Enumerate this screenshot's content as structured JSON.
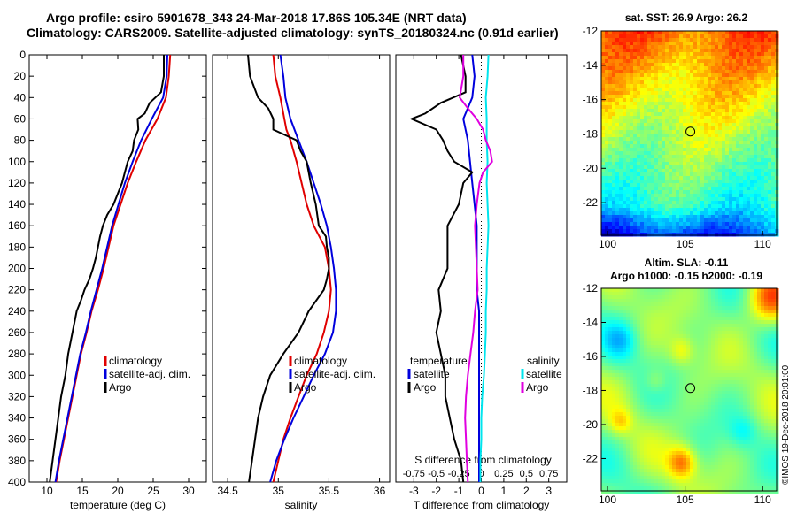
{
  "header": {
    "line1": "Argo profile: csiro 5901678_343 24-Mar-2018 17.86S 105.34E (NRT data)",
    "line2": "Climatology: CARS2009. Satellite-adjusted climatology: synTS_20180324.nc (0.91d earlier)"
  },
  "stamp": "©IMOS 19-Dec-2018 20:01:00",
  "colors": {
    "climatology": "#e00000",
    "satellite": "#0000dd",
    "argo": "#000000",
    "sal_satellite": "#00e5ee",
    "sal_argo": "#e000e0"
  },
  "chart_data": [
    {
      "id": "temperature",
      "type": "line",
      "xlabel": "temperature (deg C)",
      "ylabel": "",
      "xlim": [
        7.5,
        32.5
      ],
      "ylim": [
        400,
        0
      ],
      "xticks": [
        10,
        15,
        20,
        25,
        30
      ],
      "yticks": [
        0,
        20,
        40,
        60,
        80,
        100,
        120,
        140,
        160,
        180,
        200,
        220,
        240,
        260,
        280,
        300,
        320,
        340,
        360,
        380,
        400
      ],
      "legend": [
        "climatology",
        "satellite-adj. clim.",
        "Argo"
      ],
      "series": [
        {
          "name": "climatology",
          "color": "#e00000",
          "depth": [
            0,
            20,
            40,
            60,
            80,
            100,
            120,
            140,
            160,
            180,
            200,
            220,
            240,
            260,
            280,
            300,
            320,
            340,
            360,
            380,
            400
          ],
          "values": [
            27.4,
            27.2,
            26.8,
            25.6,
            23.9,
            22.6,
            21.4,
            20.4,
            19.4,
            18.7,
            18.0,
            17.2,
            16.3,
            15.6,
            14.8,
            14.2,
            13.6,
            13.0,
            12.4,
            11.8,
            11.3
          ]
        },
        {
          "name": "satellite-adj. clim.",
          "color": "#0000dd",
          "depth": [
            0,
            20,
            40,
            60,
            80,
            100,
            120,
            140,
            160,
            180,
            200,
            220,
            240,
            260,
            280,
            300,
            320,
            340,
            360,
            380,
            400
          ],
          "values": [
            27.0,
            26.9,
            26.4,
            24.8,
            23.3,
            22.1,
            21.0,
            20.1,
            19.2,
            18.5,
            17.8,
            17.0,
            16.2,
            15.5,
            14.7,
            14.1,
            13.5,
            12.9,
            12.3,
            11.7,
            11.2
          ]
        },
        {
          "name": "Argo",
          "color": "#000000",
          "depth": [
            0,
            20,
            35,
            45,
            55,
            60,
            70,
            80,
            90,
            100,
            110,
            120,
            130,
            140,
            150,
            160,
            170,
            180,
            190,
            200,
            210,
            220,
            230,
            240,
            250,
            260,
            270,
            280,
            290,
            300,
            310,
            320,
            330,
            340,
            350,
            360,
            370,
            380,
            390,
            400
          ],
          "values": [
            26.5,
            26.5,
            26.1,
            24.5,
            23.8,
            22.8,
            22.9,
            22.3,
            22.1,
            21.4,
            21.0,
            20.6,
            20.0,
            19.4,
            18.5,
            17.9,
            17.5,
            17.2,
            16.9,
            16.5,
            16.0,
            15.3,
            14.8,
            14.2,
            13.9,
            13.6,
            13.3,
            13.0,
            12.8,
            12.6,
            12.3,
            12.0,
            11.8,
            11.6,
            11.4,
            11.2,
            11.0,
            10.8,
            10.6,
            10.4
          ]
        }
      ]
    },
    {
      "id": "salinity",
      "type": "line",
      "xlabel": "salinity",
      "ylabel": "",
      "xlim": [
        34.35,
        36.1
      ],
      "ylim": [
        400,
        0
      ],
      "xticks": [
        34.5,
        35,
        35.5,
        36
      ],
      "xtick_labels": [
        "34.5",
        "35",
        "35.5",
        "36"
      ],
      "legend": [
        "climatology",
        "satellite-adj. clim.",
        "Argo"
      ],
      "series": [
        {
          "name": "climatology",
          "color": "#e00000",
          "depth": [
            0,
            20,
            40,
            60,
            70,
            80,
            100,
            120,
            140,
            160,
            180,
            200,
            220,
            240,
            260,
            280,
            300,
            320,
            340,
            360,
            380,
            400
          ],
          "values": [
            34.95,
            34.97,
            35.02,
            35.06,
            35.08,
            35.12,
            35.18,
            35.23,
            35.28,
            35.35,
            35.46,
            35.5,
            35.52,
            35.5,
            35.45,
            35.38,
            35.28,
            35.2,
            35.12,
            35.05,
            35.0,
            34.95
          ]
        },
        {
          "name": "satellite-adj. clim.",
          "color": "#0000dd",
          "depth": [
            0,
            20,
            40,
            60,
            80,
            100,
            120,
            140,
            160,
            180,
            200,
            220,
            240,
            260,
            280,
            300,
            320,
            340,
            360,
            380,
            400
          ],
          "values": [
            35.02,
            35.05,
            35.07,
            35.12,
            35.2,
            35.28,
            35.35,
            35.42,
            35.48,
            35.52,
            35.55,
            35.57,
            35.57,
            35.54,
            35.46,
            35.35,
            35.25,
            35.15,
            35.06,
            34.98,
            34.92
          ]
        },
        {
          "name": "Argo",
          "color": "#000000",
          "depth": [
            0,
            20,
            40,
            50,
            60,
            70,
            80,
            90,
            100,
            110,
            120,
            140,
            160,
            170,
            180,
            190,
            200,
            210,
            220,
            240,
            260,
            280,
            300,
            320,
            340,
            360,
            380,
            400
          ],
          "values": [
            34.7,
            34.72,
            34.8,
            34.9,
            34.95,
            34.95,
            35.18,
            35.22,
            35.28,
            35.3,
            35.32,
            35.37,
            35.4,
            35.47,
            35.48,
            35.5,
            35.5,
            35.48,
            35.45,
            35.3,
            35.2,
            35.05,
            34.92,
            34.85,
            34.8,
            34.77,
            34.74,
            34.71
          ]
        }
      ]
    },
    {
      "id": "difference",
      "type": "line",
      "xlabel": "T difference from climatology",
      "top_xlabel": "S difference from climatology",
      "xlim": [
        -3.8,
        3.8
      ],
      "ylim": [
        400,
        0
      ],
      "xticks": [
        -3,
        -2,
        -1,
        0,
        1,
        2,
        3
      ],
      "top_xticks": [
        -0.75,
        -0.5,
        -0.25,
        0,
        0.25,
        0.5,
        0.75
      ],
      "top_xtick_labels": [
        "-0.75",
        "-0.5",
        "-0.25",
        "0",
        "0.25",
        "0.5",
        "0.75"
      ],
      "legend_left": {
        "title": "temperature",
        "items": [
          "satellite",
          "Argo"
        ]
      },
      "legend_right": {
        "title": "salinity",
        "items": [
          "satellite",
          "Argo"
        ]
      },
      "series": [
        {
          "name": "T satellite",
          "color": "#0000dd",
          "depth": [
            0,
            20,
            40,
            60,
            80,
            100,
            120,
            140,
            160,
            180,
            200,
            220,
            240,
            260,
            280,
            300,
            320,
            340,
            360,
            380,
            400
          ],
          "values": [
            -0.4,
            -0.3,
            -0.4,
            -0.8,
            -0.6,
            -0.5,
            -0.4,
            -0.3,
            -0.2,
            -0.2,
            -0.2,
            -0.2,
            -0.1,
            -0.1,
            -0.1,
            -0.1,
            -0.1,
            -0.1,
            -0.1,
            -0.1,
            -0.1
          ]
        },
        {
          "name": "T Argo",
          "color": "#000000",
          "depth": [
            0,
            20,
            35,
            45,
            55,
            60,
            70,
            80,
            90,
            100,
            110,
            120,
            140,
            160,
            180,
            200,
            220,
            240,
            260,
            280,
            300,
            320,
            340,
            360,
            380,
            400
          ],
          "values": [
            -0.9,
            -0.7,
            -0.7,
            -1.8,
            -2.5,
            -3.1,
            -2.0,
            -1.7,
            -1.5,
            -1.2,
            -0.4,
            -0.8,
            -1.0,
            -1.5,
            -1.5,
            -1.5,
            -1.9,
            -1.8,
            -2.0,
            -1.8,
            -1.6,
            -1.6,
            -1.4,
            -1.2,
            -0.9,
            -0.8
          ]
        },
        {
          "name": "S satellite",
          "color": "#00e5ee",
          "depth": [
            0,
            20,
            40,
            60,
            80,
            100,
            120,
            140,
            160,
            180,
            200,
            220,
            240,
            260,
            280,
            300,
            320,
            340,
            360,
            380,
            400
          ],
          "values": [
            0.08,
            0.07,
            0.05,
            0.06,
            0.06,
            0.07,
            0.06,
            0.07,
            0.08,
            0.07,
            0.06,
            0.06,
            0.05,
            0.05,
            0.04,
            0.03,
            0.01,
            0.0,
            0.0,
            -0.01,
            -0.01
          ]
        },
        {
          "name": "S Argo",
          "color": "#e000e0",
          "depth": [
            0,
            20,
            30,
            40,
            50,
            60,
            70,
            80,
            90,
            100,
            110,
            120,
            140,
            160,
            180,
            200,
            220,
            240,
            260,
            280,
            300,
            320,
            340,
            360,
            380,
            400
          ],
          "values": [
            -0.2,
            -0.2,
            -0.22,
            -0.24,
            -0.15,
            -0.05,
            0.02,
            0.05,
            0.1,
            0.12,
            0.02,
            -0.02,
            -0.05,
            -0.07,
            -0.06,
            -0.05,
            -0.04,
            -0.07,
            -0.09,
            -0.12,
            -0.15,
            -0.17,
            -0.18,
            -0.17,
            -0.16,
            -0.15
          ]
        }
      ]
    },
    {
      "id": "sst_map",
      "type": "heatmap",
      "title": "sat. SST: 26.9 Argo: 26.2",
      "xlim": [
        99.6,
        110.9
      ],
      "ylim": [
        -23.9,
        -12.0
      ],
      "xticks": [
        100,
        105,
        110
      ],
      "yticks": [
        -12,
        -14,
        -16,
        -18,
        -20,
        -22
      ],
      "marker": {
        "lon": 105.34,
        "lat": -17.86
      }
    },
    {
      "id": "sla_map",
      "type": "heatmap",
      "title": "Altim. SLA: -0.11",
      "subtitle": "Argo h1000: -0.15 h2000: -0.19",
      "xlim": [
        99.6,
        110.9
      ],
      "ylim": [
        -23.9,
        -12.0
      ],
      "xticks": [
        100,
        105,
        110
      ],
      "yticks": [
        -12,
        -14,
        -16,
        -18,
        -20,
        -22
      ],
      "marker": {
        "lon": 105.34,
        "lat": -17.86
      }
    }
  ]
}
